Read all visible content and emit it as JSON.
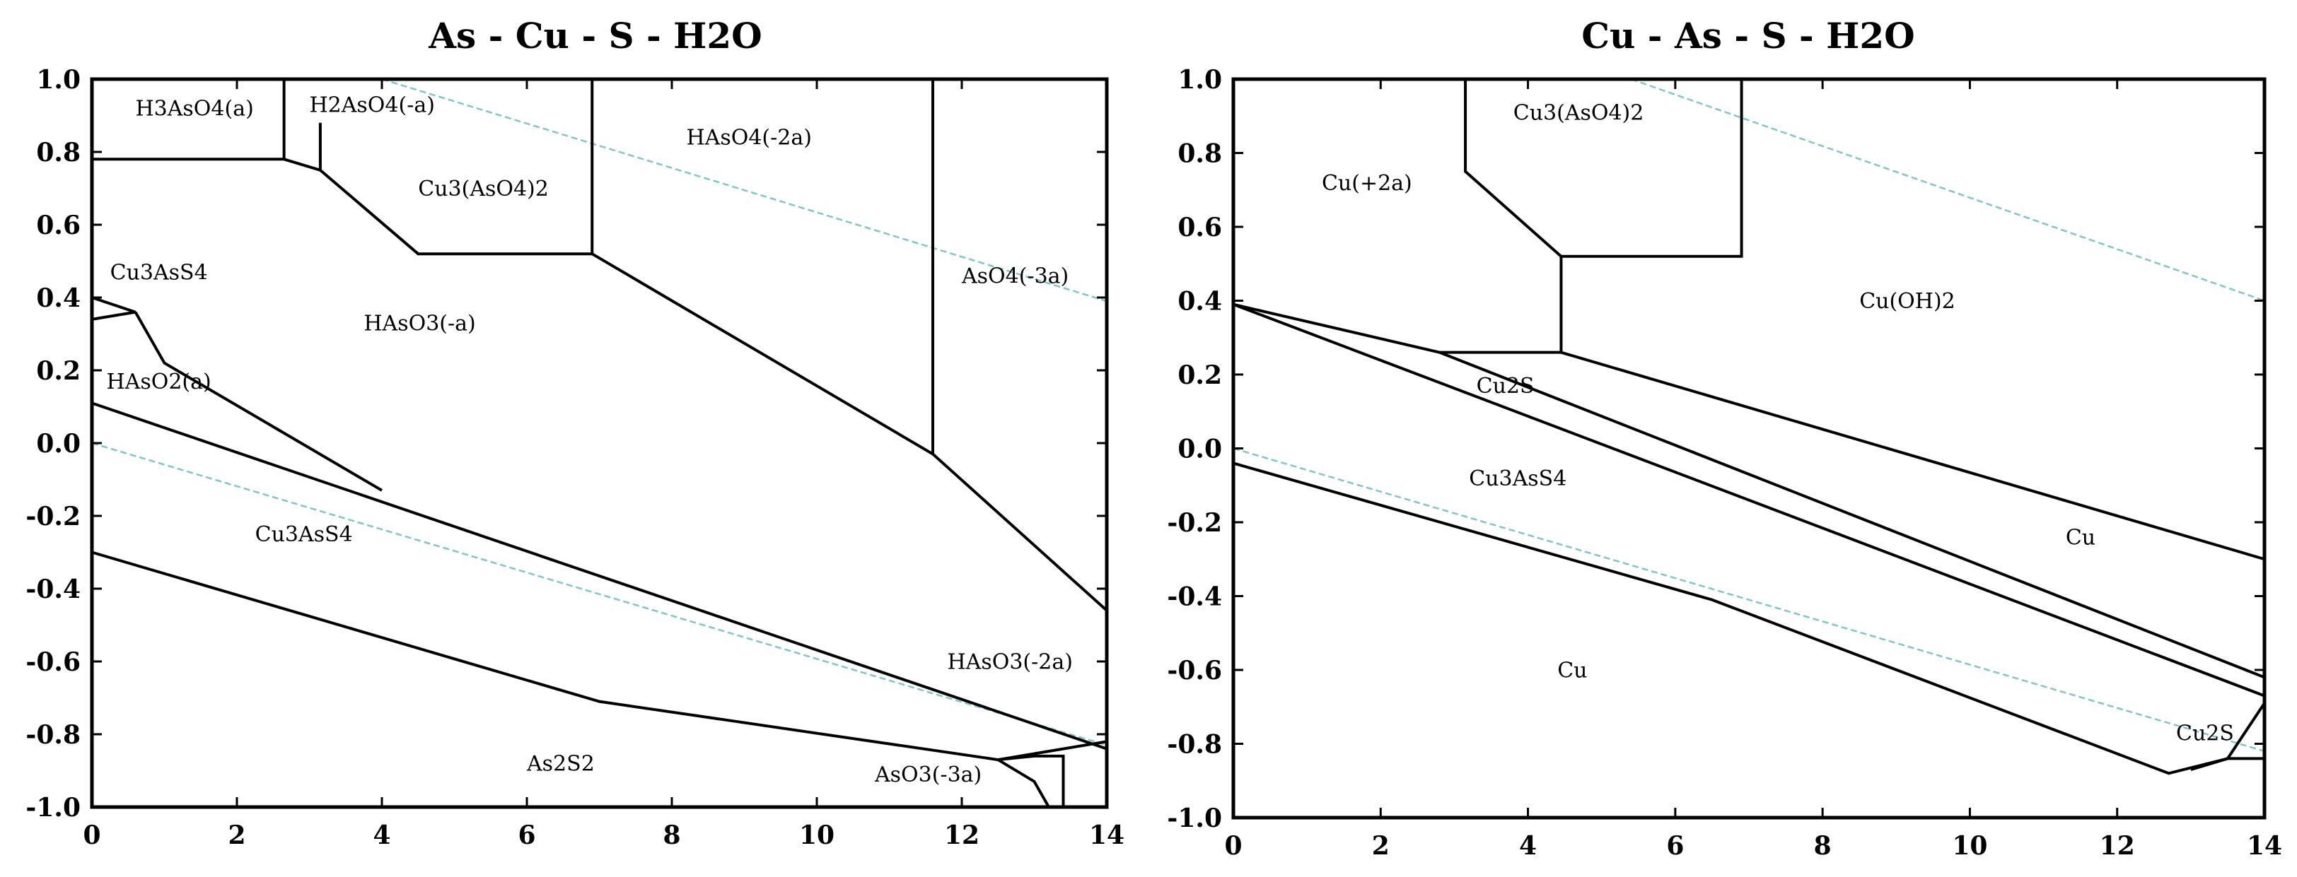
{
  "chart_data": [
    {
      "type": "phase-diagram",
      "title": "As - Cu - S - H2O",
      "xlim": [
        0,
        14
      ],
      "ylim": [
        -1.0,
        1.0
      ],
      "xticks": [
        "0",
        "2",
        "4",
        "6",
        "8",
        "10",
        "12",
        "14"
      ],
      "yticks": [
        "1.0",
        "0.8",
        "0.6",
        "0.4",
        "0.2",
        "0.0",
        "-0.2",
        "-0.4",
        "-0.6",
        "-0.8",
        "-1.0"
      ],
      "water_lines_color": "#7fc7c7",
      "water_lines": [
        [
          [
            4.0,
            1.0
          ],
          [
            14,
            0.39
          ]
        ],
        [
          [
            0,
            0.0
          ],
          [
            14,
            -0.83
          ]
        ]
      ],
      "boundaries": [
        [
          [
            0,
            0.78
          ],
          [
            2.65,
            0.78
          ],
          [
            2.65,
            1.0
          ]
        ],
        [
          [
            2.65,
            0.78
          ],
          [
            3.15,
            0.75
          ],
          [
            3.15,
            0.88
          ]
        ],
        [
          [
            3.15,
            0.75
          ],
          [
            4.5,
            0.52
          ],
          [
            6.9,
            0.52
          ],
          [
            6.9,
            1.0
          ]
        ],
        [
          [
            6.9,
            0.52
          ],
          [
            11.6,
            -0.03
          ],
          [
            11.6,
            1.0
          ]
        ],
        [
          [
            11.6,
            -0.03
          ],
          [
            14,
            -0.46
          ]
        ],
        [
          [
            0,
            0.4
          ],
          [
            0.6,
            0.36
          ],
          [
            0,
            0.34
          ]
        ],
        [
          [
            0.6,
            0.36
          ],
          [
            1.0,
            0.22
          ],
          [
            4.0,
            -0.13
          ]
        ],
        [
          [
            0,
            0.11
          ],
          [
            14,
            -0.84
          ]
        ],
        [
          [
            0,
            -0.3
          ],
          [
            7.0,
            -0.71
          ],
          [
            12.5,
            -0.87
          ],
          [
            13.4,
            -0.84
          ],
          [
            14,
            -0.82
          ]
        ],
        [
          [
            12.5,
            -0.87
          ],
          [
            13.0,
            -0.93
          ],
          [
            13.2,
            -1.0
          ]
        ],
        [
          [
            12.5,
            -0.87
          ],
          [
            13.0,
            -0.86
          ],
          [
            13.4,
            -0.86
          ],
          [
            13.4,
            -1.0
          ]
        ]
      ],
      "regions": [
        {
          "label": "H3AsO4(a)",
          "x": 0.6,
          "y": 0.9
        },
        {
          "label": "H2AsO4(-a)",
          "x": 3.0,
          "y": 0.91
        },
        {
          "label": "HAsO4(-2a)",
          "x": 8.2,
          "y": 0.82
        },
        {
          "label": "Cu3(AsO4)2",
          "x": 4.5,
          "y": 0.68
        },
        {
          "label": "Cu3AsS4",
          "x": 0.25,
          "y": 0.45
        },
        {
          "label": "HAsO3(-a)",
          "x": 3.75,
          "y": 0.31
        },
        {
          "label": "AsO4(-3a)",
          "x": 12.0,
          "y": 0.44
        },
        {
          "label": "HAsO2(a)",
          "x": 0.2,
          "y": 0.15
        },
        {
          "label": "Cu3AsS4",
          "x": 2.25,
          "y": -0.27
        },
        {
          "label": "HAsO3(-2a)",
          "x": 11.8,
          "y": -0.62
        },
        {
          "label": "As2S2",
          "x": 6.0,
          "y": -0.9
        },
        {
          "label": "AsO3(-3a)",
          "x": 10.8,
          "y": -0.93
        }
      ]
    },
    {
      "type": "phase-diagram",
      "title": "Cu - As - S - H2O",
      "xlim": [
        0,
        14
      ],
      "ylim": [
        -1.0,
        1.0
      ],
      "xticks": [
        "0",
        "2",
        "4",
        "6",
        "8",
        "10",
        "12",
        "14"
      ],
      "yticks": [
        "1.0",
        "0.8",
        "0.6",
        "0.4",
        "0.2",
        "0.0",
        "-0.2",
        "-0.4",
        "-0.6",
        "-0.8",
        "-1.0"
      ],
      "water_lines_color": "#7fc7c7",
      "water_lines": [
        [
          [
            5.4,
            1.0
          ],
          [
            14,
            0.4
          ]
        ],
        [
          [
            0,
            0.0
          ],
          [
            14,
            -0.82
          ]
        ]
      ],
      "boundaries": [
        [
          [
            3.15,
            1.0
          ],
          [
            3.15,
            0.75
          ],
          [
            4.45,
            0.52
          ],
          [
            4.45,
            0.26
          ]
        ],
        [
          [
            4.45,
            0.52
          ],
          [
            6.9,
            0.52
          ],
          [
            6.9,
            1.0
          ]
        ],
        [
          [
            2.8,
            0.26
          ],
          [
            4.45,
            0.26
          ],
          [
            14,
            -0.3
          ]
        ],
        [
          [
            0,
            0.39
          ],
          [
            2.8,
            0.26
          ],
          [
            14,
            -0.62
          ]
        ],
        [
          [
            0,
            0.39
          ],
          [
            14,
            -0.67
          ]
        ],
        [
          [
            0,
            -0.04
          ],
          [
            6.5,
            -0.41
          ],
          [
            12.7,
            -0.88
          ],
          [
            13.5,
            -0.84
          ],
          [
            14,
            -0.69
          ]
        ],
        [
          [
            13.0,
            -0.87
          ],
          [
            13.5,
            -0.84
          ],
          [
            14,
            -0.84
          ]
        ]
      ],
      "regions": [
        {
          "label": "Cu3(AsO4)2",
          "x": 3.8,
          "y": 0.89
        },
        {
          "label": "Cu(+2a)",
          "x": 1.2,
          "y": 0.7
        },
        {
          "label": "Cu(OH)2",
          "x": 8.5,
          "y": 0.38
        },
        {
          "label": "Cu2S",
          "x": 3.3,
          "y": 0.15
        },
        {
          "label": "Cu3AsS4",
          "x": 3.2,
          "y": -0.1
        },
        {
          "label": "Cu",
          "x": 11.3,
          "y": -0.26
        },
        {
          "label": "Cu",
          "x": 4.4,
          "y": -0.62
        },
        {
          "label": "Cu2S",
          "x": 12.8,
          "y": -0.79
        }
      ]
    }
  ]
}
